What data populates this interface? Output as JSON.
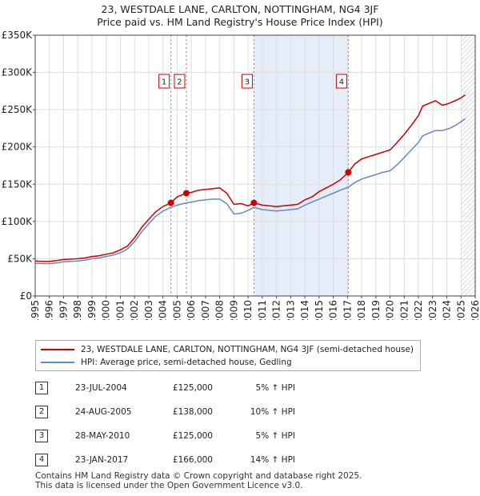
{
  "title_line1": "23, WESTDALE LANE, CARLTON, NOTTINGHAM, NG4 3JF",
  "title_line2": "Price paid vs. HM Land Registry's House Price Index (HPI)",
  "colors": {
    "price": "#cc0000",
    "hpi": "#5b8ec4",
    "shade": "#e6ecf8",
    "vline": "#e06060"
  },
  "chart_data": {
    "type": "line",
    "title": "Price paid vs. HM Land Registry's House Price Index (HPI)",
    "xlim": [
      1995,
      2026
    ],
    "ylim": [
      0,
      350000
    ],
    "y_ticks": [
      0,
      50000,
      100000,
      150000,
      200000,
      250000,
      300000,
      350000
    ],
    "y_tick_labels": [
      "£0",
      "£50K",
      "£100K",
      "£150K",
      "£200K",
      "£250K",
      "£300K",
      "£350K"
    ],
    "x_ticks": [
      1995,
      1996,
      1997,
      1998,
      1999,
      2000,
      2001,
      2002,
      2003,
      2004,
      2005,
      2006,
      2007,
      2008,
      2009,
      2010,
      2011,
      2012,
      2013,
      2014,
      2015,
      2016,
      2017,
      2018,
      2019,
      2020,
      2021,
      2022,
      2023,
      2024,
      2025,
      2026
    ],
    "grid": true,
    "shaded_range": [
      2010.41,
      2017.06
    ],
    "hatched_from": 2025.0,
    "series": [
      {
        "name": "23, WESTDALE LANE, CARLTON, NOTTINGHAM, NG4 3JF (semi-detached house)",
        "color": "#cc0000",
        "x": [
          1995,
          1995.5,
          1996,
          1996.5,
          1997,
          1997.5,
          1998,
          1998.5,
          1999,
          1999.5,
          2000,
          2000.5,
          2001,
          2001.5,
          2002,
          2002.5,
          2003,
          2003.5,
          2004,
          2004.56,
          2005,
          2005.65,
          2006,
          2006.5,
          2007,
          2007.5,
          2008,
          2008.5,
          2009,
          2009.5,
          2010,
          2010.41,
          2011,
          2011.5,
          2012,
          2012.5,
          2013,
          2013.5,
          2014,
          2014.5,
          2015,
          2015.5,
          2016,
          2016.5,
          2017.06,
          2017.5,
          2018,
          2018.5,
          2019,
          2019.5,
          2020,
          2020.5,
          2021,
          2021.5,
          2022,
          2022.3,
          2022.8,
          2023.2,
          2023.7,
          2024.2,
          2024.7,
          2025.0,
          2025.3
        ],
        "values": [
          47000,
          46500,
          46500,
          47500,
          49000,
          49500,
          50000,
          51000,
          53000,
          54000,
          56000,
          58000,
          62000,
          67000,
          78000,
          92000,
          103000,
          113000,
          120000,
          125000,
          133000,
          138000,
          139000,
          142000,
          143000,
          144000,
          145000,
          138000,
          123000,
          124000,
          121000,
          125000,
          122000,
          121000,
          120000,
          121000,
          122000,
          123000,
          129000,
          133000,
          140000,
          145000,
          150000,
          156000,
          166000,
          177000,
          184000,
          187000,
          190000,
          193000,
          196000,
          206000,
          217000,
          229000,
          242000,
          255000,
          259000,
          262000,
          256000,
          259000,
          263000,
          266000,
          270000
        ]
      },
      {
        "name": "HPI: Average price, semi-detached house, Gedling",
        "color": "#5b8ec4",
        "x": [
          1995,
          1995.5,
          1996,
          1996.5,
          1997,
          1997.5,
          1998,
          1998.5,
          1999,
          1999.5,
          2000,
          2000.5,
          2001,
          2001.5,
          2002,
          2002.5,
          2003,
          2003.5,
          2004,
          2004.56,
          2005,
          2005.65,
          2006,
          2006.5,
          2007,
          2007.5,
          2008,
          2008.5,
          2009,
          2009.5,
          2010,
          2010.41,
          2011,
          2011.5,
          2012,
          2012.5,
          2013,
          2013.5,
          2014,
          2014.5,
          2015,
          2015.5,
          2016,
          2016.5,
          2017.06,
          2017.5,
          2018,
          2018.5,
          2019,
          2019.5,
          2020,
          2020.5,
          2021,
          2021.5,
          2022,
          2022.3,
          2022.8,
          2023.2,
          2023.7,
          2024.2,
          2024.7,
          2025.0,
          2025.3
        ],
        "values": [
          44000,
          43500,
          43500,
          44500,
          46000,
          46500,
          47000,
          48000,
          50000,
          51000,
          53000,
          55000,
          58000,
          63000,
          73000,
          86000,
          97000,
          107000,
          114000,
          119000,
          122000,
          125000,
          126000,
          128000,
          129000,
          130000,
          130000,
          124000,
          110000,
          111000,
          115000,
          119000,
          116000,
          115000,
          114000,
          115000,
          116000,
          117000,
          122000,
          126000,
          130000,
          134000,
          138000,
          142000,
          146000,
          152000,
          157000,
          160000,
          163000,
          166000,
          168000,
          176000,
          186000,
          196000,
          206000,
          215000,
          219000,
          222000,
          222000,
          225000,
          230000,
          234000,
          238000
        ]
      }
    ],
    "markers": [
      {
        "label": "1",
        "x": 2004.56,
        "y": 125000
      },
      {
        "label": "2",
        "x": 2005.65,
        "y": 138000
      },
      {
        "label": "3",
        "x": 2010.41,
        "y": 125000
      },
      {
        "label": "4",
        "x": 2017.06,
        "y": 166000
      }
    ]
  },
  "legend": {
    "price_label": "23, WESTDALE LANE, CARLTON, NOTTINGHAM, NG4 3JF (semi-detached house)",
    "hpi_label": "HPI: Average price, semi-detached house, Gedling"
  },
  "transactions": [
    {
      "num": "1",
      "date": "23-JUL-2004",
      "price": "£125,000",
      "pct": "5% ↑ HPI"
    },
    {
      "num": "2",
      "date": "24-AUG-2005",
      "price": "£138,000",
      "pct": "10% ↑ HPI"
    },
    {
      "num": "3",
      "date": "28-MAY-2010",
      "price": "£125,000",
      "pct": "5% ↑ HPI"
    },
    {
      "num": "4",
      "date": "23-JAN-2017",
      "price": "£166,000",
      "pct": "14% ↑ HPI"
    }
  ],
  "footer": {
    "line1": "Contains HM Land Registry data © Crown copyright and database right 2025.",
    "line2": "This data is licensed under the Open Government Licence v3.0."
  }
}
